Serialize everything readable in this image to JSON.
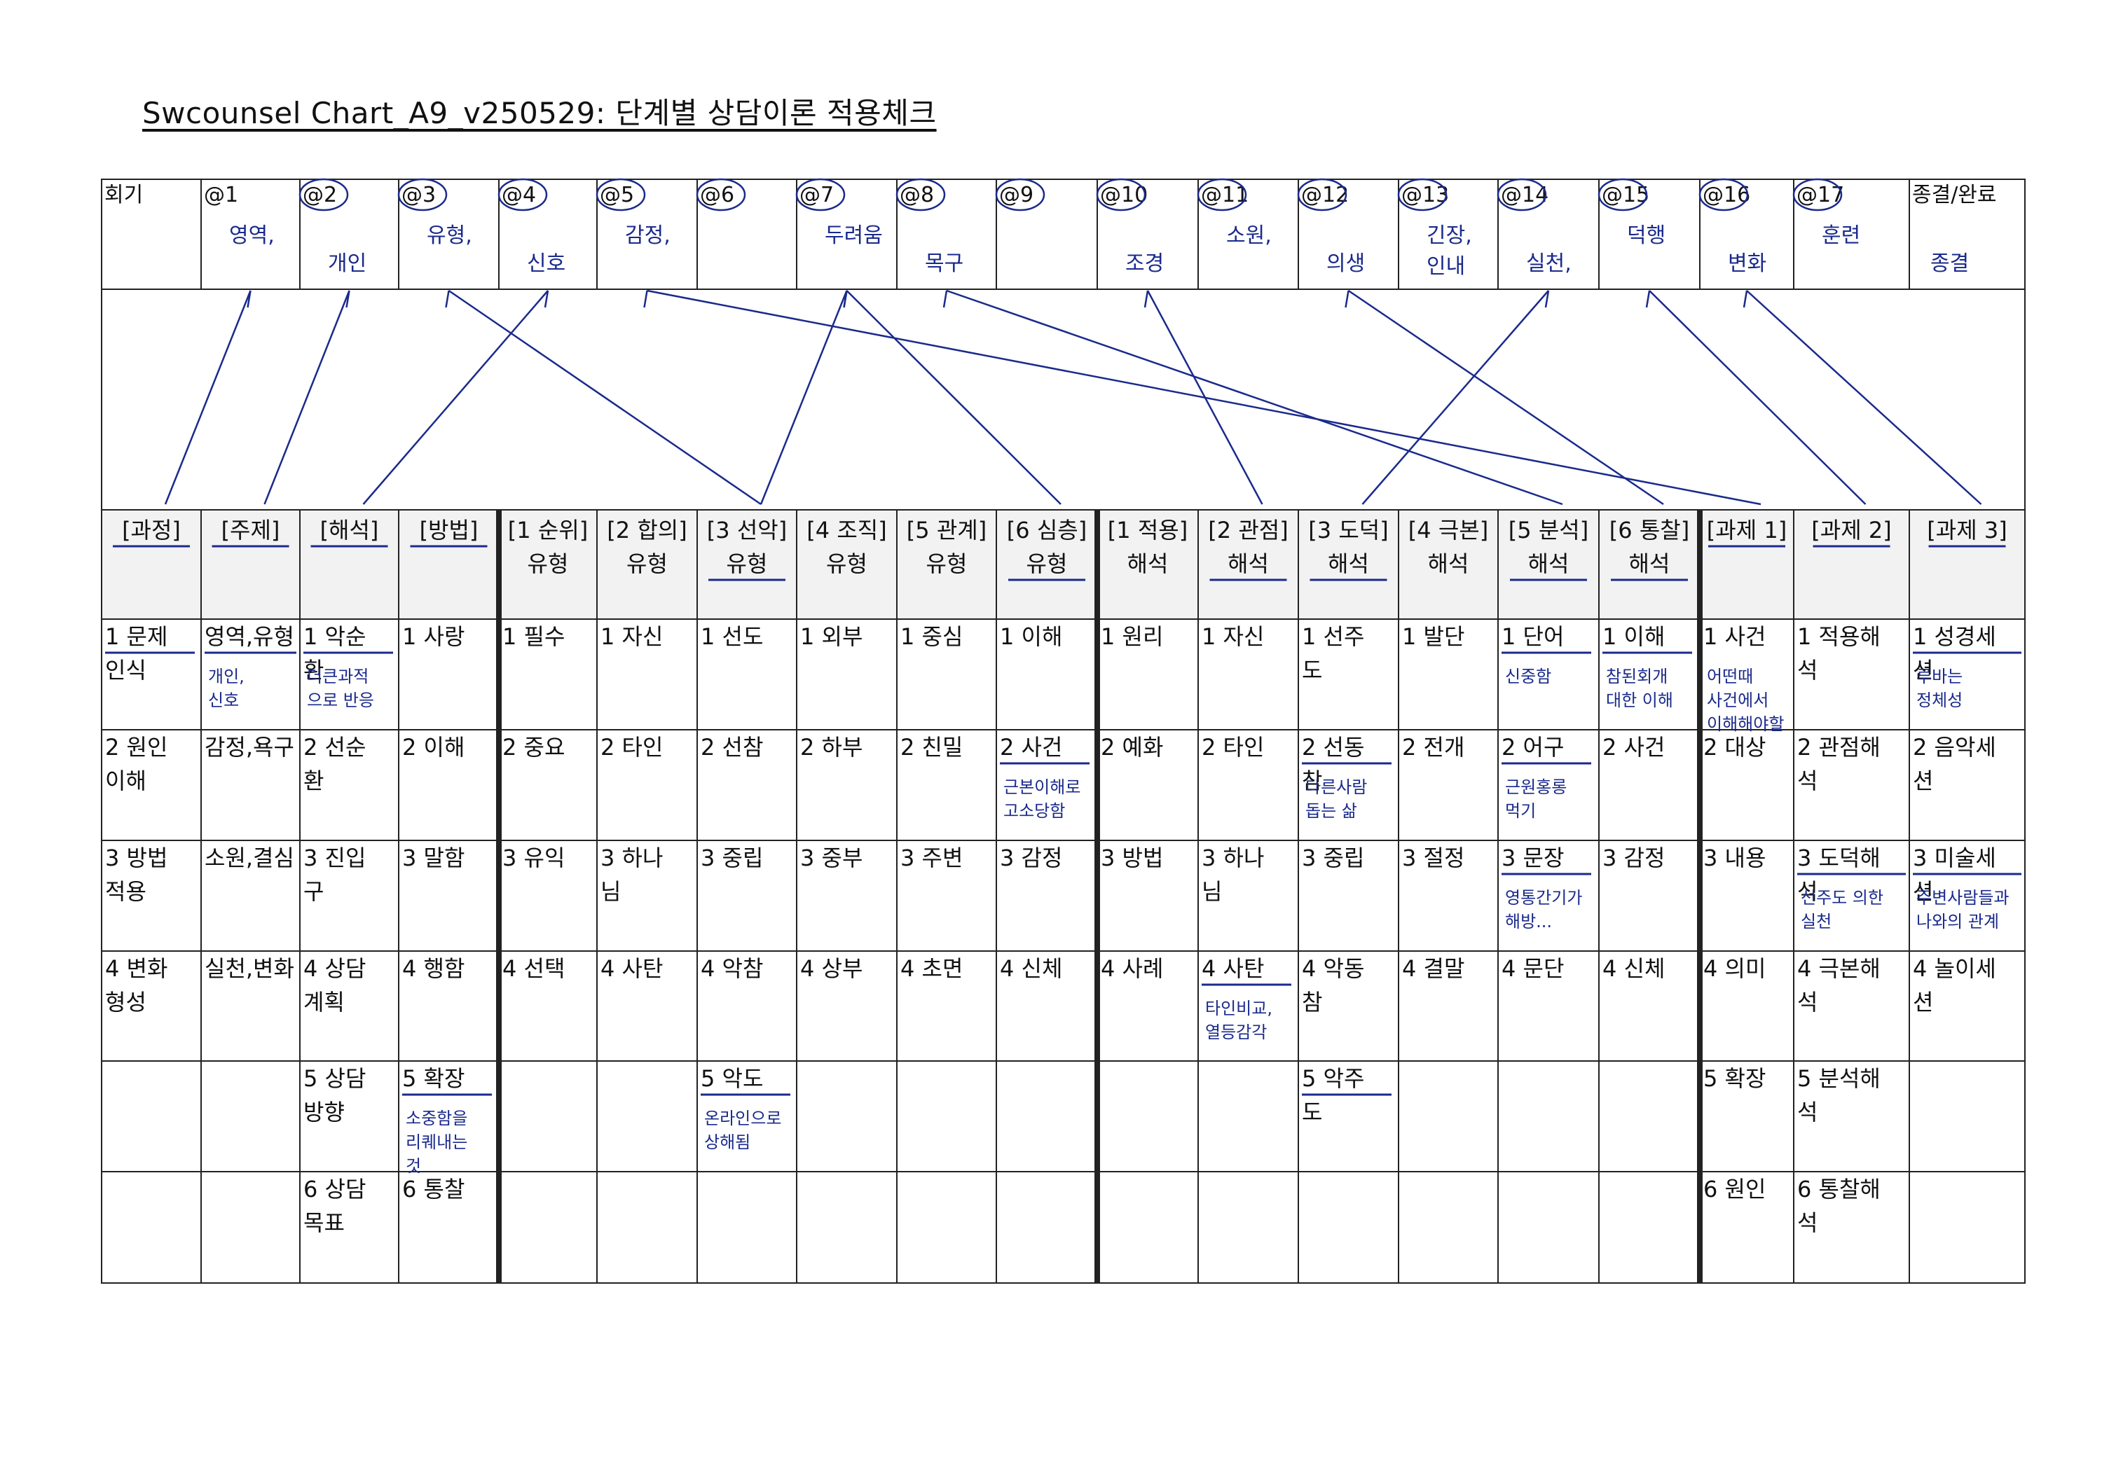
{
  "title": "Swcounsel Chart_A9_v250529: 단계별 상담이론 적용체크",
  "sessions": {
    "labels": [
      "회기",
      "@1",
      "@2",
      "@3",
      "@4",
      "@5",
      "@6",
      "@7",
      "@8",
      "@9",
      "@10",
      "@11",
      "@12",
      "@13",
      "@14",
      "@15",
      "@16",
      "@17",
      "종결/완료"
    ],
    "handwritten": [
      "",
      "영역,",
      "개인",
      "유형,",
      "신호",
      "감정,",
      "",
      "두려움",
      "목구",
      "",
      "조경",
      "소원,",
      "의생",
      "긴장, 인내",
      "실천,",
      "덕행",
      "변화",
      "훈련",
      "종결"
    ]
  },
  "headers": [
    {
      "l1": "[과정]",
      "l2": ""
    },
    {
      "l1": "[주제]",
      "l2": ""
    },
    {
      "l1": "[해석]",
      "l2": ""
    },
    {
      "l1": "[방법]",
      "l2": ""
    },
    {
      "l1": "[1 순위]",
      "l2": "유형"
    },
    {
      "l1": "[2 합의]",
      "l2": "유형"
    },
    {
      "l1": "[3 선악]",
      "l2": "유형"
    },
    {
      "l1": "[4 조직]",
      "l2": "유형"
    },
    {
      "l1": "[5 관계]",
      "l2": "유형"
    },
    {
      "l1": "[6 심층]",
      "l2": "유형"
    },
    {
      "l1": "[1 적용]",
      "l2": "해석"
    },
    {
      "l1": "[2 관점]",
      "l2": "해석"
    },
    {
      "l1": "[3 도덕]",
      "l2": "해석"
    },
    {
      "l1": "[4 극본]",
      "l2": "해석"
    },
    {
      "l1": "[5 분석]",
      "l2": "해석"
    },
    {
      "l1": "[6 통찰]",
      "l2": "해석"
    },
    {
      "l1": "[과제 1]",
      "l2": ""
    },
    {
      "l1": "[과제 2]",
      "l2": ""
    },
    {
      "l1": "[과제 3]",
      "l2": ""
    }
  ],
  "rows": [
    [
      "1 문제인식",
      "영역,유형",
      "1 악순환",
      "1 사랑",
      "1 필수",
      "1 자신",
      "1 선도",
      "1 외부",
      "1 중심",
      "1 이해",
      "1 원리",
      "1 자신",
      "1 선주도",
      "1 발단",
      "1 단어",
      "1 이해",
      "1 사건",
      "1 적용해석",
      "1 성경세션"
    ],
    [
      "2 원인이해",
      "감정,욕구",
      "2 선순환",
      "2 이해",
      "2 중요",
      "2 타인",
      "2 선참",
      "2 하부",
      "2 친밀",
      "2 사건",
      "2 예화",
      "2 타인",
      "2 선동참",
      "2 전개",
      "2 어구",
      "2 사건",
      "2 대상",
      "2 관점해석",
      "2 음악세션"
    ],
    [
      "3 방법적용",
      "소원,결심",
      "3 진입구",
      "3 말함",
      "3 유익",
      "3 하나님",
      "3 중립",
      "3 중부",
      "3 주변",
      "3 감정",
      "3 방법",
      "3 하나님",
      "3 중립",
      "3 절정",
      "3 문장",
      "3 감정",
      "3 내용",
      "3 도덕해석",
      "3 미술세션"
    ],
    [
      "4 변화형성",
      "실천,변화",
      "4 상담계획",
      "4 행함",
      "4 선택",
      "4 사탄",
      "4 악참",
      "4 상부",
      "4 초면",
      "4 신체",
      "4 사례",
      "4 사탄",
      "4 악동참",
      "4 결말",
      "4 문단",
      "4 신체",
      "4 의미",
      "4 극본해석",
      "4 놀이세션"
    ],
    [
      "",
      "",
      "5 상담방향",
      "5 확장",
      "",
      "",
      "5 악도",
      "",
      "",
      "",
      "",
      "",
      "5 악주도",
      "",
      "",
      "",
      "5 확장",
      "5 분석해석",
      ""
    ],
    [
      "",
      "",
      "6 상담목표",
      "6 통찰",
      "",
      "",
      "",
      "",
      "",
      "",
      "",
      "",
      "",
      "",
      "",
      "",
      "6 원인",
      "6 통찰해석",
      ""
    ]
  ],
  "notes": [
    {
      "r": 0,
      "c": 1,
      "text": "개인, 신호"
    },
    {
      "r": 0,
      "c": 2,
      "text": "더큰과적 으로 반응"
    },
    {
      "r": 0,
      "c": 14,
      "text": "신중함"
    },
    {
      "r": 0,
      "c": 15,
      "text": "참된회개 대한 이해"
    },
    {
      "r": 0,
      "c": 16,
      "text": "어떤때 사건에서 이해해야할"
    },
    {
      "r": 0,
      "c": 18,
      "text": "루바는 정체성"
    },
    {
      "r": 1,
      "c": 9,
      "text": "근본이해로 고소당함"
    },
    {
      "r": 1,
      "c": 12,
      "text": "다른사람 돕는 삶"
    },
    {
      "r": 1,
      "c": 14,
      "text": "근원홍롱 먹기"
    },
    {
      "r": 2,
      "c": 14,
      "text": "영통간기가 해방..."
    },
    {
      "r": 2,
      "c": 17,
      "text": "선주도 의한 실천"
    },
    {
      "r": 2,
      "c": 18,
      "text": "주변사람들과 나와의 관계"
    },
    {
      "r": 3,
      "c": 11,
      "text": "타인비교, 열등감각"
    },
    {
      "r": 4,
      "c": 3,
      "text": "소중함을 리퀘내는 것"
    },
    {
      "r": 4,
      "c": 6,
      "text": "온라인으로 상해됨"
    }
  ],
  "underlined": [
    {
      "r": 0,
      "c": 0
    },
    {
      "r": 0,
      "c": 1
    },
    {
      "r": 0,
      "c": 2
    },
    {
      "r": 0,
      "c": 14
    },
    {
      "r": 0,
      "c": 15
    },
    {
      "r": 0,
      "c": 18
    },
    {
      "r": 1,
      "c": 9
    },
    {
      "r": 1,
      "c": 12
    },
    {
      "r": 1,
      "c": 14
    },
    {
      "r": 2,
      "c": 14
    },
    {
      "r": 2,
      "c": 17
    },
    {
      "r": 2,
      "c": 18
    },
    {
      "r": 3,
      "c": 11
    },
    {
      "r": 4,
      "c": 3
    },
    {
      "r": 4,
      "c": 6
    },
    {
      "r": 4,
      "c": 12
    }
  ],
  "underlined_headers": [
    0,
    1,
    2,
    3,
    6,
    9,
    11,
    12,
    14,
    15,
    16,
    17,
    18
  ],
  "links": [
    [
      1,
      0
    ],
    [
      2,
      1
    ],
    [
      3,
      6
    ],
    [
      4,
      2
    ],
    [
      5,
      16
    ],
    [
      7,
      9
    ],
    [
      7,
      6
    ],
    [
      8,
      14
    ],
    [
      10,
      11
    ],
    [
      12,
      15
    ],
    [
      14,
      12
    ],
    [
      15,
      17
    ],
    [
      16,
      18
    ]
  ],
  "colors": {
    "ink": "#1a2a8c",
    "grid": "#222222",
    "headerBg": "#f2f2f2"
  }
}
